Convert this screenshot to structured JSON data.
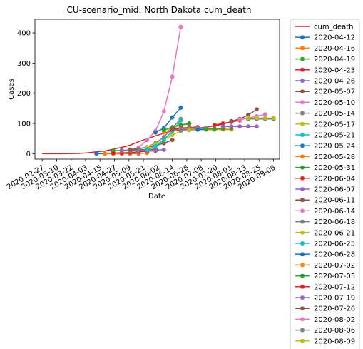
{
  "chart_data": {
    "type": "line",
    "title": "CU-scenario_mid: North Dakota cum_death",
    "xlabel": "Date",
    "ylabel": "Cases",
    "ylim": [
      -18,
      445
    ],
    "xlim": [
      "2020-02-21",
      "2020-09-11"
    ],
    "grid": false,
    "legend_placement": "outside-right",
    "x_ticks": [
      "2020-02-27",
      "2020-03-10",
      "2020-03-22",
      "2020-04-03",
      "2020-04-15",
      "2020-04-27",
      "2020-05-09",
      "2020-05-21",
      "2020-06-02",
      "2020-06-14",
      "2020-06-26",
      "2020-07-08",
      "2020-07-20",
      "2020-08-01",
      "2020-08-13",
      "2020-08-25",
      "2020-09-06"
    ],
    "y_ticks": [
      0,
      100,
      200,
      300,
      400
    ],
    "series": [
      {
        "name": "cum_death",
        "color": "#d62728",
        "marker": false,
        "x": [
          "2020-02-27",
          "2020-03-15",
          "2020-03-28",
          "2020-04-05",
          "2020-04-12",
          "2020-04-19",
          "2020-04-26",
          "2020-05-03",
          "2020-05-10",
          "2020-05-17",
          "2020-05-24",
          "2020-05-31",
          "2020-06-07",
          "2020-06-14",
          "2020-06-21",
          "2020-06-28",
          "2020-07-05",
          "2020-07-12",
          "2020-07-19",
          "2020-07-26",
          "2020-08-02",
          "2020-08-09"
        ],
        "y": [
          0,
          0,
          1,
          3,
          6,
          9,
          15,
          21,
          28,
          40,
          49,
          59,
          68,
          75,
          78,
          80,
          84,
          88,
          92,
          98,
          106,
          113
        ]
      },
      {
        "name": "2020-04-12",
        "color": "#1f77b4",
        "x": [
          "2020-04-12",
          "2020-04-19",
          "2020-04-26",
          "2020-05-03",
          "2020-05-10",
          "2020-05-17"
        ],
        "y": [
          0,
          0,
          0,
          0,
          0,
          0
        ]
      },
      {
        "name": "2020-04-16",
        "color": "#ff7f0e",
        "x": [
          "2020-04-19",
          "2020-04-26",
          "2020-05-03",
          "2020-05-10",
          "2020-05-17",
          "2020-05-24"
        ],
        "y": [
          0,
          0,
          0,
          1,
          1,
          2
        ]
      },
      {
        "name": "2020-04-19",
        "color": "#2ca02c",
        "x": [
          "2020-04-26",
          "2020-05-03",
          "2020-05-10",
          "2020-05-17",
          "2020-05-24",
          "2020-05-31"
        ],
        "y": [
          10,
          11,
          12,
          13,
          14,
          15
        ]
      },
      {
        "name": "2020-04-23",
        "color": "#d62728",
        "x": [
          "2020-04-26",
          "2020-05-03",
          "2020-05-10",
          "2020-05-17",
          "2020-05-24",
          "2020-05-31"
        ],
        "y": [
          2,
          3,
          4,
          6,
          8,
          10
        ]
      },
      {
        "name": "2020-04-26",
        "color": "#9467bd",
        "x": [
          "2020-05-03",
          "2020-05-10",
          "2020-05-17",
          "2020-05-24",
          "2020-05-31",
          "2020-06-07"
        ],
        "y": [
          10,
          10,
          10,
          11,
          12,
          13
        ]
      },
      {
        "name": "2020-05-07",
        "color": "#8c564b",
        "x": [
          "2020-05-10",
          "2020-05-17",
          "2020-05-24",
          "2020-05-31",
          "2020-06-07",
          "2020-06-14"
        ],
        "y": [
          14,
          17,
          21,
          27,
          35,
          45
        ]
      },
      {
        "name": "2020-05-10",
        "color": "#e377c2",
        "x": [
          "2020-05-17",
          "2020-05-24",
          "2020-05-31",
          "2020-06-07",
          "2020-06-14",
          "2020-06-21"
        ],
        "y": [
          20,
          45,
          75,
          140,
          255,
          420
        ]
      },
      {
        "name": "2020-05-14",
        "color": "#7f7f7f",
        "x": [
          "2020-05-17",
          "2020-05-24",
          "2020-05-31",
          "2020-06-07",
          "2020-06-14",
          "2020-06-21"
        ],
        "y": [
          15,
          22,
          35,
          55,
          85,
          115
        ]
      },
      {
        "name": "2020-05-17",
        "color": "#bcbd22",
        "x": [
          "2020-05-24",
          "2020-05-31",
          "2020-06-07",
          "2020-06-14",
          "2020-06-21",
          "2020-06-28"
        ],
        "y": [
          22,
          32,
          45,
          62,
          75,
          80
        ]
      },
      {
        "name": "2020-05-21",
        "color": "#17becf",
        "x": [
          "2020-05-24",
          "2020-05-31",
          "2020-06-07",
          "2020-06-14",
          "2020-06-21"
        ],
        "y": [
          14,
          25,
          45,
          75,
          110
        ]
      },
      {
        "name": "2020-05-24",
        "color": "#1f77b4",
        "x": [
          "2020-05-31",
          "2020-06-07",
          "2020-06-14",
          "2020-06-21"
        ],
        "y": [
          70,
          85,
          120,
          152
        ]
      },
      {
        "name": "2020-05-28",
        "color": "#ff7f0e",
        "x": [
          "2020-06-07",
          "2020-06-14",
          "2020-06-21",
          "2020-06-28"
        ],
        "y": [
          70,
          85,
          95,
          98
        ]
      },
      {
        "name": "2020-05-31",
        "color": "#2ca02c",
        "x": [
          "2020-06-07",
          "2020-06-14",
          "2020-06-21",
          "2020-06-28"
        ],
        "y": [
          78,
          88,
          95,
          100
        ]
      },
      {
        "name": "2020-06-04",
        "color": "#d62728",
        "x": [
          "2020-06-14",
          "2020-06-21",
          "2020-06-28",
          "2020-07-05"
        ],
        "y": [
          82,
          85,
          87,
          88
        ]
      },
      {
        "name": "2020-06-07",
        "color": "#9467bd",
        "x": [
          "2020-06-14",
          "2020-06-21",
          "2020-06-28",
          "2020-07-05"
        ],
        "y": [
          80,
          82,
          84,
          86
        ]
      },
      {
        "name": "2020-06-11",
        "color": "#8c564b",
        "x": [
          "2020-06-14",
          "2020-06-21",
          "2020-06-28",
          "2020-07-05",
          "2020-07-12"
        ],
        "y": [
          80,
          82,
          84,
          85,
          86
        ]
      },
      {
        "name": "2020-06-14",
        "color": "#e377c2",
        "x": [
          "2020-06-21",
          "2020-06-28",
          "2020-07-05",
          "2020-07-12"
        ],
        "y": [
          80,
          82,
          83,
          84
        ]
      },
      {
        "name": "2020-06-18",
        "color": "#7f7f7f",
        "x": [
          "2020-06-21",
          "2020-06-28",
          "2020-07-05",
          "2020-07-12"
        ],
        "y": [
          78,
          80,
          81,
          82
        ]
      },
      {
        "name": "2020-06-21",
        "color": "#bcbd22",
        "x": [
          "2020-06-28",
          "2020-07-05",
          "2020-07-12",
          "2020-07-19"
        ],
        "y": [
          78,
          79,
          80,
          80
        ]
      },
      {
        "name": "2020-06-25",
        "color": "#17becf",
        "x": [
          "2020-07-05",
          "2020-07-12",
          "2020-07-19",
          "2020-07-26"
        ],
        "y": [
          80,
          80,
          81,
          82
        ]
      },
      {
        "name": "2020-06-28",
        "color": "#1f77b4",
        "x": [
          "2020-07-05",
          "2020-07-12",
          "2020-07-19",
          "2020-07-26"
        ],
        "y": [
          80,
          80,
          80,
          81
        ]
      },
      {
        "name": "2020-07-02",
        "color": "#ff7f0e",
        "x": [
          "2020-07-12",
          "2020-07-19",
          "2020-07-26",
          "2020-08-02"
        ],
        "y": [
          80,
          80,
          80,
          80
        ]
      },
      {
        "name": "2020-07-05",
        "color": "#2ca02c",
        "x": [
          "2020-07-12",
          "2020-07-19",
          "2020-07-26",
          "2020-08-02"
        ],
        "y": [
          82,
          83,
          84,
          85
        ]
      },
      {
        "name": "2020-07-12",
        "color": "#d62728",
        "x": [
          "2020-07-19",
          "2020-07-26",
          "2020-08-02",
          "2020-08-09"
        ],
        "y": [
          95,
          100,
          105,
          110
        ]
      },
      {
        "name": "2020-07-19",
        "color": "#9467bd",
        "x": [
          "2020-07-26",
          "2020-08-02",
          "2020-08-09",
          "2020-08-16",
          "2020-08-23"
        ],
        "y": [
          90,
          90,
          90,
          90,
          90
        ]
      },
      {
        "name": "2020-07-26",
        "color": "#8c564b",
        "x": [
          "2020-08-02",
          "2020-08-09",
          "2020-08-16",
          "2020-08-23"
        ],
        "y": [
          108,
          115,
          128,
          147
        ]
      },
      {
        "name": "2020-08-02",
        "color": "#e377c2",
        "x": [
          "2020-08-09",
          "2020-08-16",
          "2020-08-23",
          "2020-08-30"
        ],
        "y": [
          112,
          118,
          124,
          130
        ]
      },
      {
        "name": "2020-08-06",
        "color": "#7f7f7f",
        "x": [
          "2020-08-16",
          "2020-08-23",
          "2020-08-30",
          "2020-09-06"
        ],
        "y": [
          115,
          115,
          115,
          115
        ]
      },
      {
        "name": "2020-08-09",
        "color": "#bcbd22",
        "x": [
          "2020-08-16",
          "2020-08-23",
          "2020-08-30",
          "2020-09-06"
        ],
        "y": [
          118,
          118,
          118,
          118
        ]
      }
    ]
  }
}
